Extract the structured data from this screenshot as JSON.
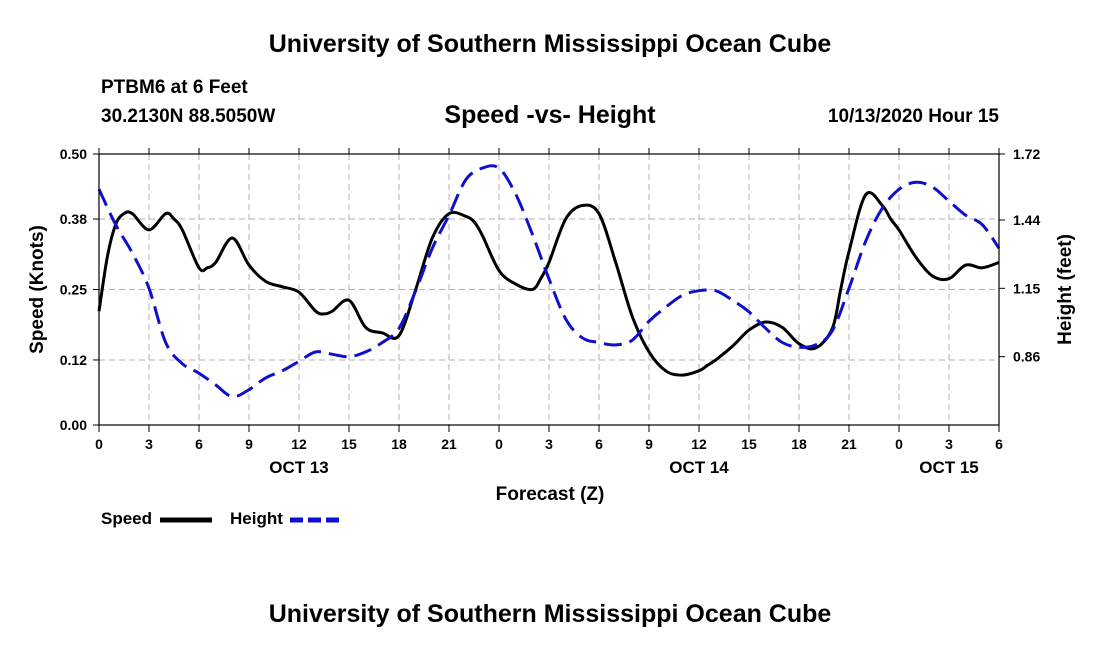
{
  "header": {
    "title": "University of Southern Mississippi Ocean Cube",
    "station": "PTBM6 at 6 Feet",
    "coordinates": "30.2130N 88.5050W",
    "subtitle": "Speed -vs- Height",
    "datestamp": "10/13/2020 Hour 15"
  },
  "footer": {
    "title": "University of Southern Mississippi Ocean Cube"
  },
  "legend": {
    "speed_label": "Speed",
    "height_label": "Height"
  },
  "colors": {
    "speed": "#000000",
    "height": "#1010cc",
    "grid": "#b0b0b0"
  },
  "chart_data": {
    "type": "line",
    "title": "Speed -vs- Height",
    "xlabel": "Forecast (Z)",
    "ylabel": "Speed (Knots)",
    "ylabel_right": "Height (feet)",
    "xlim": [
      0,
      54
    ],
    "ylim": [
      0.0,
      0.5
    ],
    "ylim_right": [
      0.57,
      1.72
    ],
    "x_ticks": [
      0,
      3,
      6,
      9,
      12,
      15,
      18,
      21,
      24,
      27,
      30,
      33,
      36,
      39,
      42,
      45,
      48,
      51,
      54
    ],
    "x_tick_labels": [
      "0",
      "3",
      "6",
      "9",
      "12",
      "15",
      "18",
      "21",
      "0",
      "3",
      "6",
      "9",
      "12",
      "15",
      "18",
      "21",
      "0",
      "3",
      "6"
    ],
    "date_labels": [
      {
        "x": 12,
        "label": "OCT 13"
      },
      {
        "x": 36,
        "label": "OCT 14"
      },
      {
        "x": 51,
        "label": "OCT 15"
      }
    ],
    "y_ticks": [
      0.0,
      0.12,
      0.25,
      0.38,
      0.5
    ],
    "y_tick_labels": [
      "0.00",
      "0.12",
      "0.25",
      "0.38",
      "0.50"
    ],
    "y_ticks_right": [
      0.86,
      1.15,
      1.44,
      1.72
    ],
    "y_tick_labels_right": [
      "0.86",
      "1.15",
      "1.44",
      "1.72"
    ],
    "grid": true,
    "series": [
      {
        "name": "Speed",
        "axis": "left",
        "style": "solid",
        "x": [
          0,
          0.5,
          1,
          1.5,
          2,
          3,
          4,
          4.5,
          5,
          6,
          6.5,
          7,
          8,
          9,
          10,
          11,
          12,
          13,
          13.5,
          14,
          15,
          16,
          17,
          18,
          19,
          20,
          21,
          22,
          22.5,
          23,
          24,
          25,
          26,
          26.5,
          27,
          28,
          29,
          30,
          31,
          32,
          33,
          34,
          35,
          36,
          36.5,
          37,
          38,
          39,
          40,
          41,
          42,
          43,
          44,
          44.5,
          45,
          46,
          47,
          47.5,
          48,
          49,
          50,
          51,
          52,
          53,
          54
        ],
        "values": [
          0.21,
          0.31,
          0.37,
          0.39,
          0.39,
          0.36,
          0.39,
          0.38,
          0.36,
          0.29,
          0.29,
          0.3,
          0.345,
          0.295,
          0.265,
          0.255,
          0.245,
          0.21,
          0.205,
          0.21,
          0.23,
          0.18,
          0.17,
          0.165,
          0.25,
          0.345,
          0.39,
          0.385,
          0.375,
          0.35,
          0.285,
          0.26,
          0.25,
          0.27,
          0.3,
          0.38,
          0.405,
          0.39,
          0.3,
          0.2,
          0.135,
          0.1,
          0.092,
          0.1,
          0.11,
          0.12,
          0.145,
          0.175,
          0.19,
          0.18,
          0.15,
          0.142,
          0.178,
          0.25,
          0.32,
          0.425,
          0.405,
          0.38,
          0.36,
          0.31,
          0.275,
          0.27,
          0.295,
          0.29,
          0.3
        ]
      },
      {
        "name": "Height",
        "axis": "right",
        "style": "dashed",
        "x": [
          0,
          1,
          2,
          3,
          4,
          5,
          6,
          7,
          8,
          9,
          10,
          11,
          12,
          13,
          14,
          15,
          16,
          17,
          18,
          19,
          20,
          21,
          22,
          23,
          24,
          25,
          26,
          27,
          28,
          29,
          30,
          31,
          32,
          33,
          34,
          35,
          36,
          37,
          38,
          39,
          40,
          41,
          42,
          43,
          44,
          45,
          46,
          47,
          48,
          49,
          50,
          51,
          52,
          53,
          54
        ],
        "values": [
          1.57,
          1.42,
          1.3,
          1.15,
          0.92,
          0.83,
          0.79,
          0.74,
          0.69,
          0.72,
          0.77,
          0.8,
          0.84,
          0.88,
          0.87,
          0.86,
          0.88,
          0.92,
          0.98,
          1.14,
          1.32,
          1.46,
          1.61,
          1.66,
          1.66,
          1.55,
          1.38,
          1.19,
          1.02,
          0.94,
          0.92,
          0.91,
          0.93,
          1.01,
          1.07,
          1.12,
          1.14,
          1.14,
          1.1,
          1.05,
          0.98,
          0.92,
          0.9,
          0.91,
          0.97,
          1.15,
          1.35,
          1.49,
          1.57,
          1.6,
          1.58,
          1.52,
          1.46,
          1.42,
          1.32
        ]
      }
    ]
  }
}
